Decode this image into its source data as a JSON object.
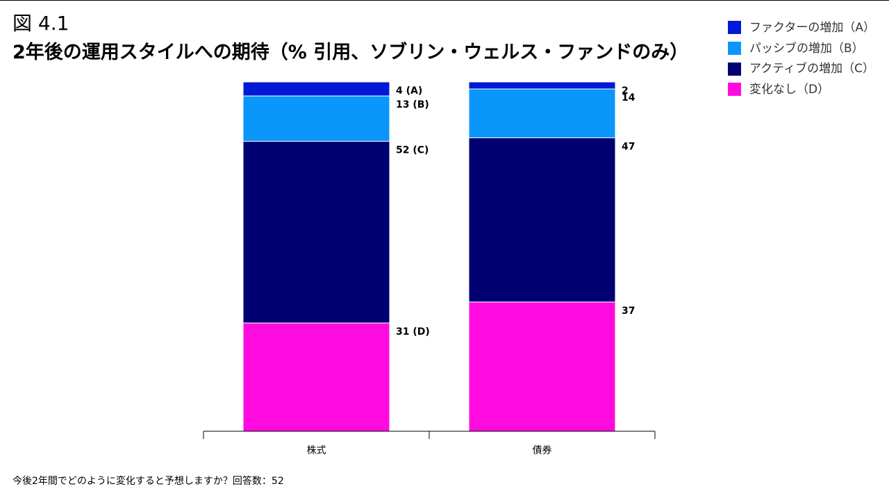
{
  "figure_number": "図 4.1",
  "title": "2年後の運用スタイルへの期待（% 引用、ソブリン・ウェルス・ファンドのみ）",
  "footnote": "今後2年間でどのように変化すると予想しますか？回答数：52",
  "chart_data": {
    "type": "bar",
    "stacked": true,
    "categories": [
      "株式",
      "債券"
    ],
    "series": [
      {
        "name": "ファクターの増加（A）",
        "color": "#0019d6",
        "values": [
          4,
          2
        ],
        "data_labels": [
          "4 (A)",
          "2"
        ]
      },
      {
        "name": "パッシブの増加（B）",
        "color": "#0a96fa",
        "values": [
          13,
          14
        ],
        "data_labels": [
          "13 (B)",
          "14"
        ]
      },
      {
        "name": "アクティブの増加（C）",
        "color": "#000072",
        "values": [
          52,
          47
        ],
        "data_labels": [
          "52 (C)",
          "47"
        ]
      },
      {
        "name": "変化なし（D）",
        "color": "#ff0be0",
        "values": [
          31,
          37
        ],
        "data_labels": [
          "31 (D)",
          "37"
        ]
      }
    ],
    "ylim": [
      0,
      100
    ],
    "grid": false,
    "legend_position": "top-right"
  }
}
